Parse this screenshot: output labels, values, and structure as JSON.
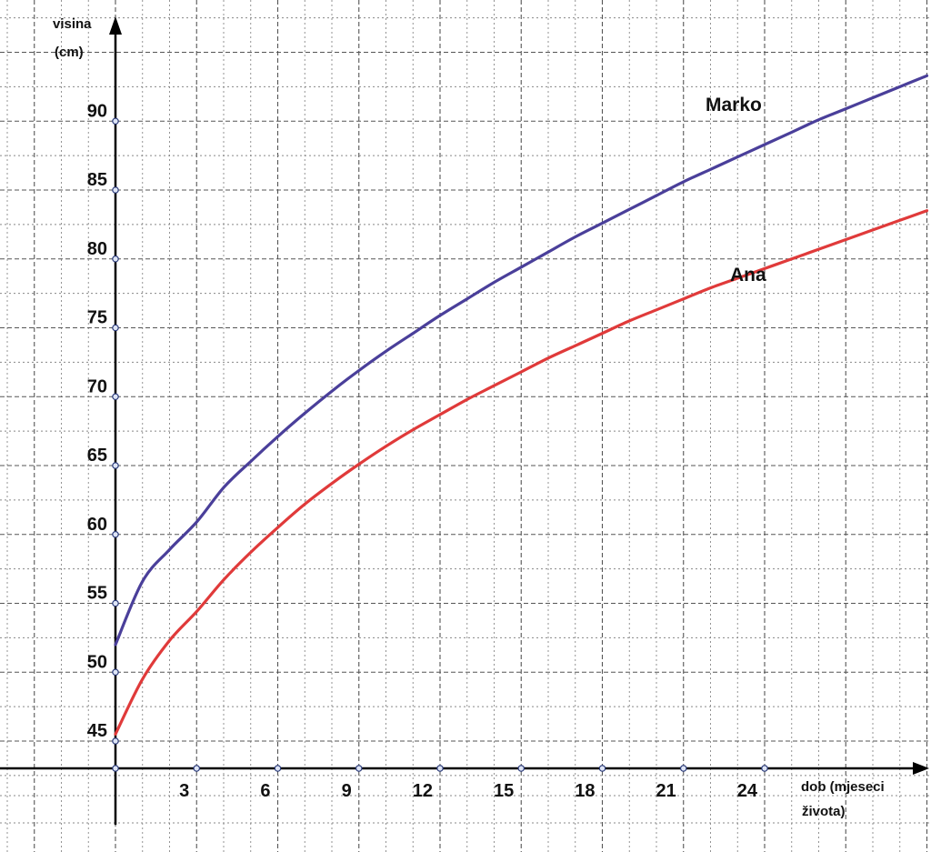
{
  "chart_data": {
    "type": "line",
    "title": "",
    "ylabel_lines": [
      "visina",
      "(cm)"
    ],
    "xlabel_lines": [
      "dob (mjeseci",
      "života)"
    ],
    "xlim": [
      0,
      30
    ],
    "ylim": [
      41,
      96
    ],
    "x_ticks": [
      3,
      6,
      9,
      12,
      15,
      18,
      21,
      24
    ],
    "y_ticks": [
      45,
      50,
      55,
      60,
      65,
      70,
      75,
      80,
      85,
      90
    ],
    "grid": true,
    "series": [
      {
        "name": "Marko",
        "color": "#4a3f9a",
        "x": [
          0,
          1,
          2,
          3,
          4,
          5,
          6,
          7,
          8,
          9,
          10,
          11,
          12,
          13,
          14,
          15,
          16,
          17,
          18,
          19,
          20,
          21,
          22,
          23,
          24,
          25,
          26,
          27,
          28,
          29,
          30
        ],
        "y": [
          52,
          56.6,
          58.9,
          60.9,
          63.4,
          65.3,
          67.1,
          68.8,
          70.4,
          71.9,
          73.3,
          74.6,
          75.9,
          77.1,
          78.3,
          79.4,
          80.5,
          81.6,
          82.6,
          83.6,
          84.6,
          85.6,
          86.5,
          87.4,
          88.3,
          89.2,
          90.1,
          90.9,
          91.7,
          92.5,
          93.3
        ]
      },
      {
        "name": "Ana",
        "color": "#e03a3a",
        "x": [
          0,
          1,
          2,
          3,
          4,
          5,
          6,
          7,
          8,
          9,
          10,
          11,
          12,
          13,
          14,
          15,
          16,
          17,
          18,
          19,
          20,
          21,
          22,
          23,
          24,
          25,
          26,
          27,
          28,
          29,
          30
        ],
        "y": [
          45.5,
          49.5,
          52.3,
          54.4,
          56.7,
          58.7,
          60.5,
          62.2,
          63.7,
          65.1,
          66.4,
          67.6,
          68.7,
          69.8,
          70.8,
          71.8,
          72.8,
          73.7,
          74.6,
          75.5,
          76.3,
          77.1,
          77.9,
          78.6,
          79.3,
          80.0,
          80.7,
          81.4,
          82.1,
          82.8,
          83.5
        ]
      }
    ]
  }
}
